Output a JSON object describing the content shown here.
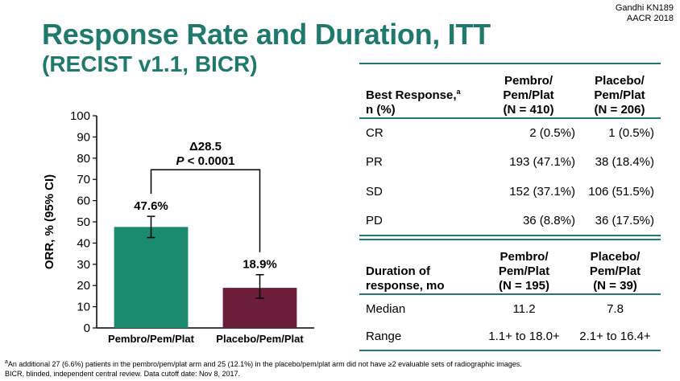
{
  "source": {
    "line1": "Gandhi KN189",
    "line2": "AACR 2018"
  },
  "title": "Response Rate and Duration, ITT",
  "subtitle": "(RECIST v1.1, BICR)",
  "chart_data": {
    "type": "bar",
    "categories": [
      "Pembro/Pem/Plat",
      "Placebo/Pem/Plat"
    ],
    "values": [
      47.6,
      18.9
    ],
    "value_labels": [
      "47.6%",
      "18.9%"
    ],
    "error_low": [
      42.6,
      14.0
    ],
    "error_high": [
      52.6,
      25.1
    ],
    "colors": [
      "#1b8a6f",
      "#6b1d3a"
    ],
    "ylabel": "ORR, % (95% CI)",
    "xlabel": "",
    "ylim": [
      0,
      100
    ],
    "yticks": [
      0,
      10,
      20,
      30,
      40,
      50,
      60,
      70,
      80,
      90,
      100
    ],
    "annotation": {
      "delta": "Δ28.5",
      "p_label": "P",
      "p_value": " < 0.0001"
    }
  },
  "response_table": {
    "header": {
      "col1_line1": "Best Response,",
      "col1_sup": "a",
      "col1_line2": "n (%)",
      "col2_line1": "Pembro/",
      "col2_line2": "Pem/Plat",
      "col2_line3": "(N = 410)",
      "col3_line1": "Placebo/",
      "col3_line2": "Pem/Plat",
      "col3_line3": "(N = 206)"
    },
    "rows": [
      {
        "label": "CR",
        "pembro": "2 (0.5%)",
        "placebo": "1 (0.5%)"
      },
      {
        "label": "PR",
        "pembro": "193 (47.1%)",
        "placebo": "38 (18.4%)"
      },
      {
        "label": "SD",
        "pembro": "152 (37.1%)",
        "placebo": "106 (51.5%)"
      },
      {
        "label": "PD",
        "pembro": "36 (8.8%)",
        "placebo": "36 (17.5%)"
      }
    ]
  },
  "duration_table": {
    "header": {
      "col1_line1": "Duration of",
      "col1_line2": "response, mo",
      "col2_line1": "Pembro/",
      "col2_line2": "Pem/Plat",
      "col2_line3": "(N = 195)",
      "col3_line1": "Placebo/",
      "col3_line2": "Pem/Plat",
      "col3_line3": "(N = 39)"
    },
    "rows": [
      {
        "label": "Median",
        "pembro": "11.2",
        "placebo": "7.8"
      },
      {
        "label": "Range",
        "pembro": "1.1+ to 18.0+",
        "placebo": "2.1+ to 16.4+"
      }
    ]
  },
  "footnote": {
    "sup": "a",
    "line1": "An additional 27 (6.6%) patients in the pembro/pem/plat arm and 25 (12.1%) in the placebo/pem/plat arm did not have ≥2 evaluable sets of radiographic images.",
    "line2": "BICR, blinded, independent central review. Data cutoff date: Nov 8, 2017."
  }
}
